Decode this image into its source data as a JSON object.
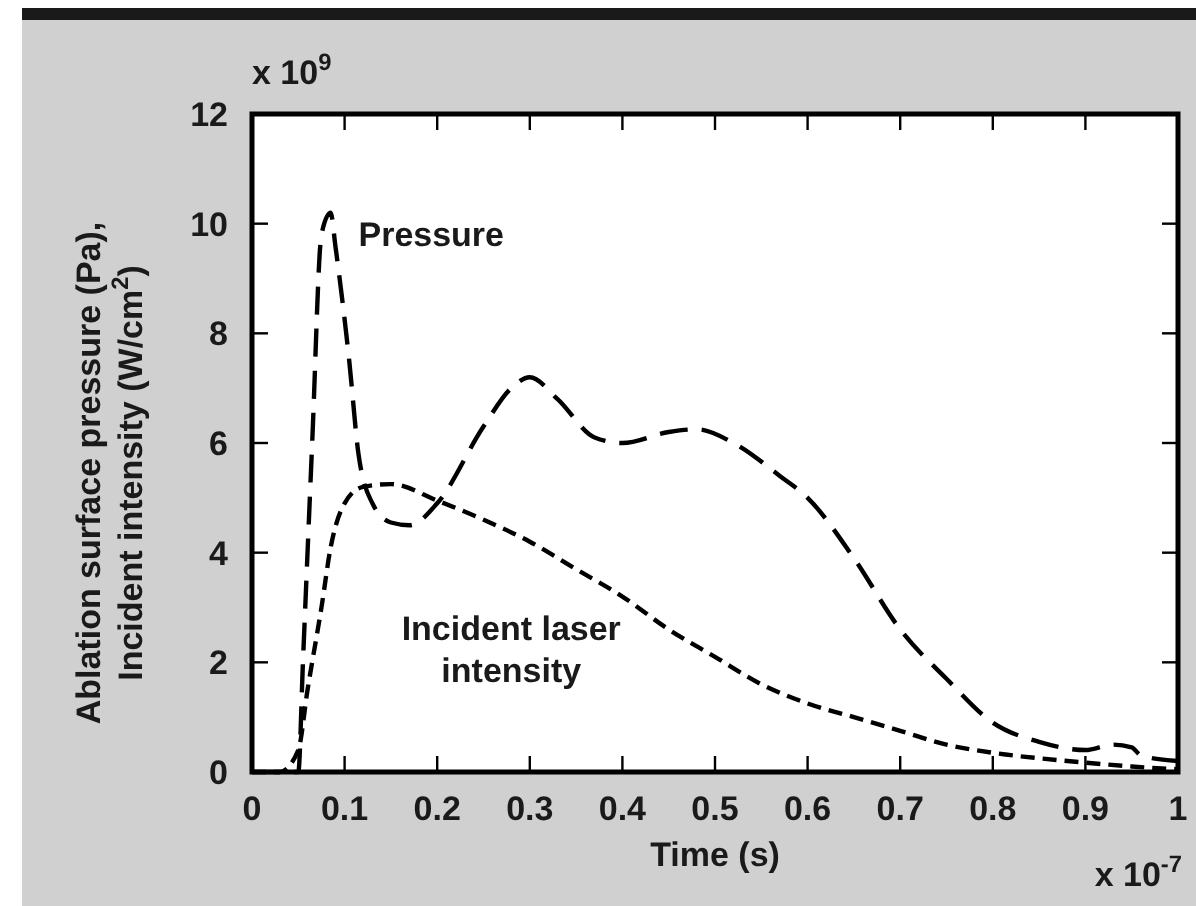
{
  "chart_data": {
    "type": "line",
    "xlabel": "Time (s)",
    "ylabel": "Ablation surface pressure (Pa), Incident intensity (W/cm$^{2}$)",
    "xlim": [
      0,
      1
    ],
    "ylim": [
      0,
      12
    ],
    "xticks": [
      0,
      0.1,
      0.2,
      0.3,
      0.4,
      0.5,
      0.6,
      0.7,
      0.8,
      0.9,
      1
    ],
    "yticks": [
      0,
      2,
      4,
      6,
      8,
      10,
      12
    ],
    "grid": false,
    "annotations": [
      "x 10$^{9}$",
      "x 10$^{-7}$"
    ],
    "series": [
      {
        "name": "Pressure",
        "color": "#000000",
        "line_style": "dashed",
        "x": [
          0,
          0.03,
          0.05,
          0.055,
          0.065,
          0.075,
          0.085,
          0.09,
          0.105,
          0.115,
          0.13,
          0.15,
          0.17,
          0.2,
          0.25,
          0.28,
          0.3,
          0.33,
          0.37,
          0.4,
          0.45,
          0.48,
          0.52,
          0.57,
          0.6,
          0.65,
          0.7,
          0.75,
          0.8,
          0.85,
          0.9,
          0.93,
          0.95,
          0.96,
          1
        ],
        "values": [
          0,
          0,
          0,
          2,
          6,
          9.8,
          10.2,
          9.6,
          7.5,
          5.8,
          4.9,
          4.55,
          4.5,
          4.9,
          6.3,
          7,
          7.2,
          6.8,
          6.1,
          6,
          6.2,
          6.25,
          6,
          5.4,
          5,
          3.9,
          2.6,
          1.7,
          0.9,
          0.55,
          0.4,
          0.5,
          0.45,
          0.3,
          0.2
        ]
      },
      {
        "name": "Incident laser intensity",
        "color": "#000000",
        "line_style": "dashed",
        "x": [
          0,
          0.03,
          0.05,
          0.06,
          0.075,
          0.085,
          0.1,
          0.12,
          0.15,
          0.2,
          0.25,
          0.3,
          0.35,
          0.4,
          0.45,
          0.5,
          0.55,
          0.6,
          0.65,
          0.7,
          0.75,
          0.8,
          0.85,
          0.9,
          0.95,
          1
        ],
        "values": [
          0,
          0,
          0.4,
          1.5,
          3,
          4.1,
          4.9,
          5.2,
          5.25,
          4.95,
          4.6,
          4.2,
          3.7,
          3.2,
          2.6,
          2.1,
          1.6,
          1.25,
          1,
          0.75,
          0.5,
          0.35,
          0.25,
          0.17,
          0.1,
          0.05
        ]
      }
    ]
  }
}
